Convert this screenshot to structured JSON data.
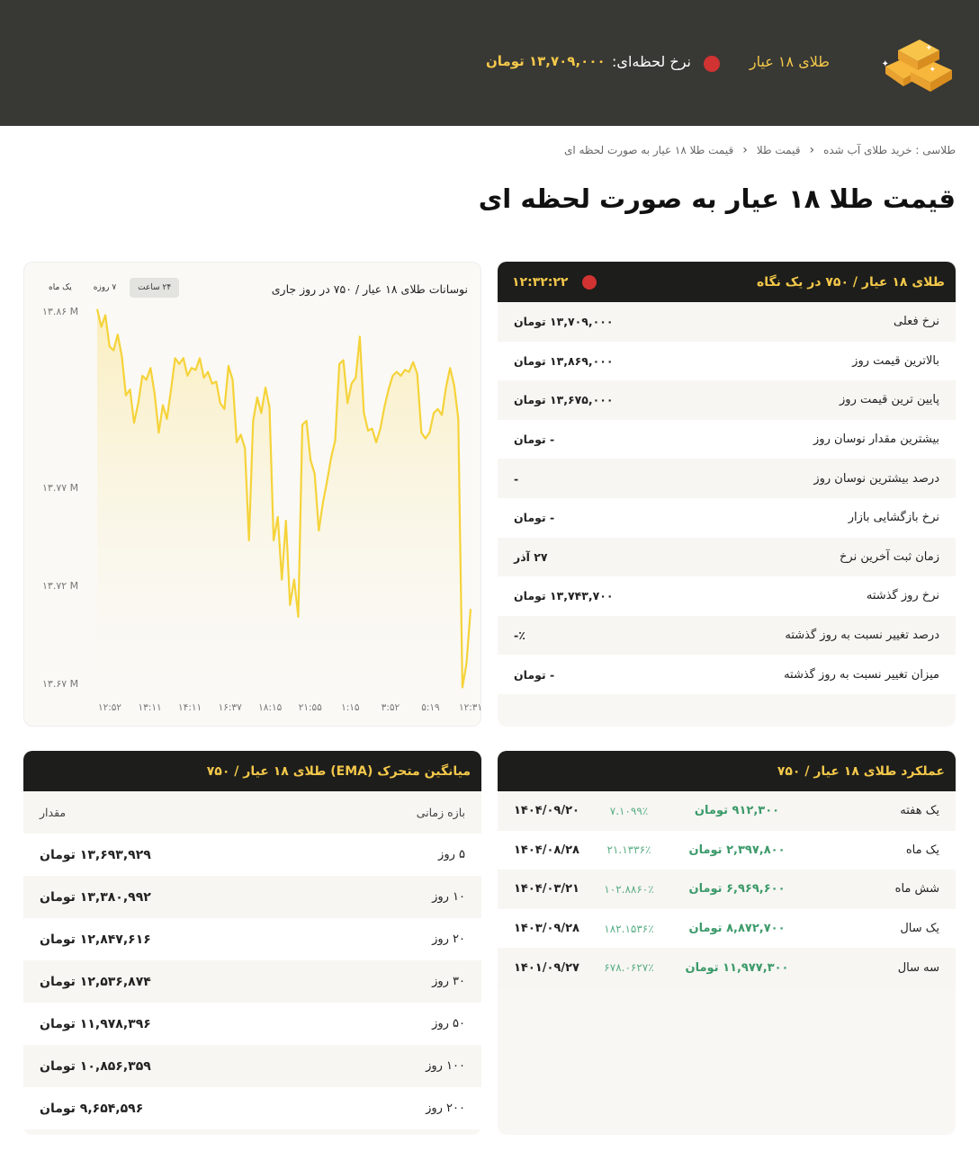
{
  "header": {
    "product": "طلای ۱۸ عیار",
    "live_label": "نرخ لحظه‌ای:",
    "live_price": "۱۳,۷۰۹,۰۰۰ تومان",
    "accent": "#f3c84a",
    "live_dot_color": "#d13232",
    "logo": "gold-bars-icon"
  },
  "breadcrumb": [
    "طلاسی : خرید طلای آب شده",
    "قیمت طلا",
    "قیمت طلا ۱۸ عیار به صورت لحظه ای"
  ],
  "page_title": "قیمت طلا ۱۸ عیار به صورت لحظه ای",
  "glance": {
    "title": "طلای ۱۸ عیار / ۷۵۰ در یک نگاه",
    "time": "۱۲:۳۲:۲۲",
    "rows": [
      {
        "label": "نرخ فعلی",
        "value": "۱۳,۷۰۹,۰۰۰ تومان"
      },
      {
        "label": "بالاترین قیمت روز",
        "value": "۱۳,۸۶۹,۰۰۰ تومان"
      },
      {
        "label": "پایین ترین قیمت روز",
        "value": "۱۳,۶۷۵,۰۰۰ تومان"
      },
      {
        "label": "بیشترین مقدار نوسان روز",
        "value": "- تومان"
      },
      {
        "label": "درصد بیشترین نوسان روز",
        "value": "-"
      },
      {
        "label": "نرخ بازگشایی بازار",
        "value": "- تومان"
      },
      {
        "label": "زمان ثبت آخرین نرخ",
        "value": "۲۷ آذر"
      },
      {
        "label": "نرخ روز گذشته",
        "value": "۱۳,۷۴۳,۷۰۰ تومان"
      },
      {
        "label": "درصد تغییر نسبت به روز گذشته",
        "value": "٪-"
      },
      {
        "label": "میزان تغییر نسبت به روز گذشته",
        "value": "- تومان"
      }
    ]
  },
  "chart_panel": {
    "title": "نوسانات طلای ۱۸ عیار / ۷۵۰ در روز جاری",
    "tabs": [
      "۲۴ ساعت",
      "۷ روزه",
      "یک ماه"
    ],
    "active_tab": 0
  },
  "chart_data": {
    "type": "area",
    "line_color": "#f5d33a",
    "ylim": [
      13.67,
      13.86
    ],
    "y_ticks": [
      13.86,
      13.77,
      13.72,
      13.67
    ],
    "y_tick_labels": [
      "۱۳.۸۶ M",
      "۱۳.۷۷ M",
      "۱۳.۷۲ M",
      "۱۳.۶۷ M"
    ],
    "x_tick_labels": [
      "۱۲:۵۲",
      "۱۳:۱۱",
      "۱۴:۱۱",
      "۱۶:۳۷",
      "۱۸:۱۵",
      "۲۱:۵۵",
      "۱:۱۵",
      "۳:۵۲",
      "۵:۱۹",
      "۱۲:۳۱"
    ],
    "grid": false,
    "values": [
      13.861,
      13.852,
      13.858,
      13.842,
      13.84,
      13.848,
      13.837,
      13.817,
      13.82,
      13.803,
      13.813,
      13.827,
      13.825,
      13.831,
      13.818,
      13.798,
      13.812,
      13.805,
      13.82,
      13.836,
      13.833,
      13.836,
      13.827,
      13.831,
      13.83,
      13.836,
      13.826,
      13.829,
      13.823,
      13.824,
      13.813,
      13.81,
      13.832,
      13.825,
      13.793,
      13.797,
      13.79,
      13.743,
      13.804,
      13.816,
      13.808,
      13.821,
      13.811,
      13.743,
      13.755,
      13.723,
      13.753,
      13.71,
      13.723,
      13.704,
      13.802,
      13.804,
      13.784,
      13.777,
      13.748,
      13.762,
      13.773,
      13.785,
      13.794,
      13.833,
      13.835,
      13.813,
      13.823,
      13.826,
      13.847,
      13.808,
      13.799,
      13.8,
      13.793,
      13.8,
      13.811,
      13.82,
      13.827,
      13.829,
      13.827,
      13.83,
      13.829,
      13.834,
      13.828,
      13.798,
      13.795,
      13.798,
      13.808,
      13.81,
      13.807,
      13.821,
      13.831,
      13.822,
      13.805,
      13.668,
      13.68,
      13.708
    ]
  },
  "performance": {
    "title": "عملکرد طلای ۱۸ عیار / ۷۵۰",
    "rows": [
      {
        "period": "یک هفته",
        "amount": "۹۱۲,۳۰۰ تومان",
        "percent": "۷.۱۰۹۹٪",
        "date": "۱۴۰۴/۰۹/۲۰"
      },
      {
        "period": "یک ماه",
        "amount": "۲,۳۹۷,۸۰۰ تومان",
        "percent": "۲۱.۱۳۳۶٪",
        "date": "۱۴۰۴/۰۸/۲۸"
      },
      {
        "period": "شش ماه",
        "amount": "۶,۹۶۹,۶۰۰ تومان",
        "percent": "۱۰۲.۸۸۶۰٪",
        "date": "۱۴۰۴/۰۳/۲۱"
      },
      {
        "period": "یک سال",
        "amount": "۸,۸۷۲,۷۰۰ تومان",
        "percent": "۱۸۲.۱۵۳۶٪",
        "date": "۱۴۰۳/۰۹/۲۸"
      },
      {
        "period": "سه سال",
        "amount": "۱۱,۹۷۷,۳۰۰ تومان",
        "percent": "۶۷۸.۰۶۲۷٪",
        "date": "۱۴۰۱/۰۹/۲۷"
      }
    ]
  },
  "ema": {
    "title": "میانگین متحرک (EMA) طلای ۱۸ عیار / ۷۵۰",
    "col_period": "بازه زمانی",
    "col_value": "مقدار",
    "rows": [
      {
        "period": "۵ روز",
        "value": "۱۳,۶۹۳,۹۲۹ تومان"
      },
      {
        "period": "۱۰ روز",
        "value": "۱۳,۳۸۰,۹۹۲ تومان"
      },
      {
        "period": "۲۰ روز",
        "value": "۱۲,۸۴۷,۶۱۶ تومان"
      },
      {
        "period": "۳۰ روز",
        "value": "۱۲,۵۳۶,۸۷۴ تومان"
      },
      {
        "period": "۵۰ روز",
        "value": "۱۱,۹۷۸,۳۹۶ تومان"
      },
      {
        "period": "۱۰۰ روز",
        "value": "۱۰,۸۵۶,۳۵۹ تومان"
      },
      {
        "period": "۲۰۰ روز",
        "value": "۹,۶۵۴,۵۹۶ تومان"
      }
    ]
  }
}
